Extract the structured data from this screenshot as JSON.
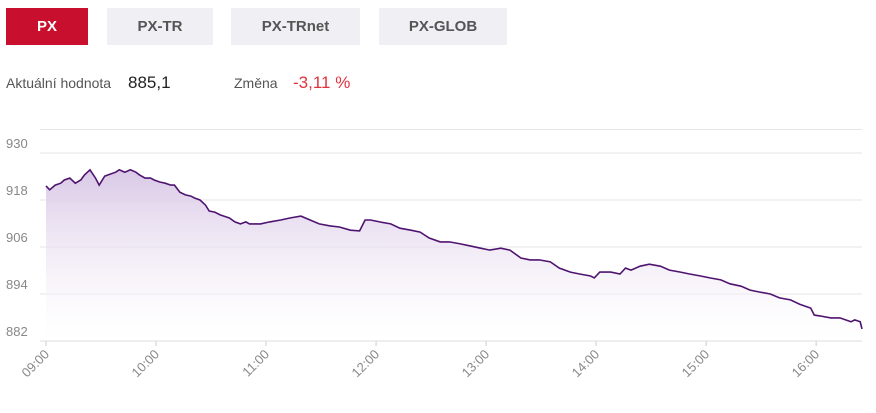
{
  "tabs": [
    "PX",
    "PX-TR",
    "PX-TRnet",
    "PX-GLOB"
  ],
  "stats": {
    "value_label": "Aktuální hodnota",
    "value": "885,1",
    "change_label": "Změna",
    "change": "-3,11 %"
  },
  "chart_data": {
    "type": "line",
    "color": "#4f1470",
    "x": [
      540,
      542,
      545,
      548,
      550,
      553,
      556,
      559,
      561,
      564,
      567,
      569,
      572,
      575,
      578,
      580,
      583,
      586,
      589,
      591,
      594,
      597,
      599,
      602,
      605,
      608,
      610,
      613,
      616,
      619,
      621,
      624,
      627,
      629,
      632,
      635,
      638,
      640,
      643,
      646,
      649,
      651,
      657,
      662,
      668,
      673,
      679,
      684,
      689,
      695,
      700,
      706,
      711,
      714,
      717,
      722,
      728,
      733,
      739,
      744,
      749,
      755,
      760,
      766,
      771,
      777,
      782,
      788,
      793,
      799,
      804,
      809,
      815,
      820,
      826,
      831,
      837,
      839,
      842,
      848,
      853,
      856,
      859,
      864,
      869,
      875,
      880,
      886,
      891,
      897,
      902,
      908,
      913,
      919,
      924,
      929,
      935,
      940,
      946,
      951,
      957,
      959,
      962,
      968,
      973,
      979,
      981,
      984,
      985
    ],
    "values": [
      921.6,
      920.6,
      921.8,
      922.3,
      923.1,
      923.6,
      922.3,
      923.1,
      924.4,
      925.7,
      923.6,
      921.8,
      924.1,
      924.6,
      925.1,
      925.7,
      925.1,
      925.7,
      925.1,
      924.4,
      923.6,
      923.6,
      923.1,
      922.6,
      922.3,
      921.8,
      921.8,
      920.0,
      919.3,
      919.0,
      918.5,
      918.0,
      916.7,
      915.2,
      914.9,
      914.2,
      913.7,
      913.4,
      912.4,
      911.9,
      912.4,
      911.9,
      911.9,
      912.4,
      912.9,
      913.4,
      913.9,
      912.9,
      911.9,
      911.4,
      911.1,
      910.3,
      910.1,
      912.9,
      912.9,
      912.4,
      911.9,
      910.8,
      910.3,
      909.8,
      908.3,
      907.3,
      907.3,
      906.8,
      906.3,
      905.7,
      905.2,
      905.7,
      905.2,
      903.2,
      902.7,
      902.7,
      902.2,
      900.6,
      899.6,
      899.1,
      898.6,
      898.1,
      899.6,
      899.6,
      899.1,
      900.6,
      900.1,
      901.1,
      901.6,
      901.1,
      900.1,
      899.6,
      899.1,
      898.6,
      898.1,
      897.6,
      896.6,
      896.0,
      895.0,
      894.5,
      894.0,
      893.0,
      892.5,
      891.4,
      890.4,
      888.6,
      888.4,
      887.9,
      887.9,
      886.9,
      887.4,
      886.9,
      885.1
    ],
    "xlim": [
      540,
      985
    ],
    "xticks": [
      {
        "value": 540,
        "label": "09:00"
      },
      {
        "value": 600,
        "label": "10:00"
      },
      {
        "value": 660,
        "label": "11:00"
      },
      {
        "value": 720,
        "label": "12:00"
      },
      {
        "value": 780,
        "label": "13:00"
      },
      {
        "value": 840,
        "label": "14:00"
      },
      {
        "value": 900,
        "label": "15:00"
      },
      {
        "value": 960,
        "label": "16:00"
      }
    ],
    "ylim": [
      882,
      936
    ],
    "yticks": [
      882,
      894,
      906,
      918,
      930
    ],
    "grid": true
  }
}
